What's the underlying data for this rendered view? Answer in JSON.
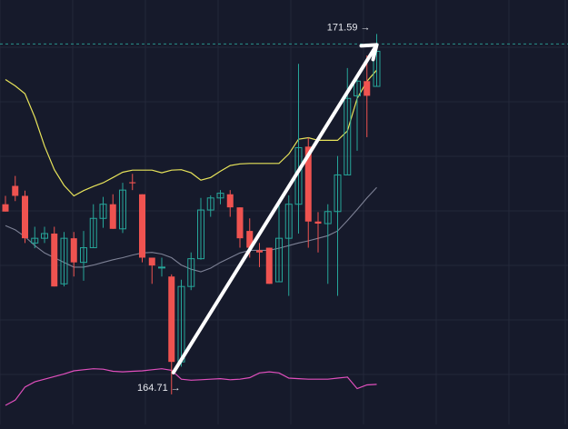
{
  "chart_data": {
    "type": "candlestick",
    "grid": true,
    "colors": {
      "background": "#161a2b",
      "grid": "#232839",
      "up": "#26a69a",
      "down": "#ef5350",
      "upper_band": "#e7e35a",
      "middle_band": "#7d8195",
      "lower_indicator": "#e04fbd",
      "dashed_level": "#2db3a5",
      "arrow": "#ffffff"
    },
    "annotations": {
      "high_label": "171.59 →",
      "low_label": "164.71 →",
      "high_value": 171.59,
      "low_value": 164.71
    },
    "candles": [
      {
        "i": 0,
        "open": 168.34,
        "close": 168.2,
        "high": 168.5,
        "low": 168.2
      },
      {
        "i": 1,
        "open": 168.69,
        "close": 168.5,
        "high": 168.88,
        "low": 168.4
      },
      {
        "i": 2,
        "open": 168.5,
        "close": 167.69,
        "high": 168.6,
        "low": 167.6
      },
      {
        "i": 3,
        "open": 167.6,
        "close": 167.69,
        "high": 167.91,
        "low": 167.5
      },
      {
        "i": 4,
        "open": 167.69,
        "close": 167.78,
        "high": 167.91,
        "low": 167.6
      },
      {
        "i": 5,
        "open": 167.78,
        "close": 166.77,
        "high": 167.91,
        "low": 166.77
      },
      {
        "i": 6,
        "open": 166.82,
        "close": 167.69,
        "high": 167.81,
        "low": 166.77
      },
      {
        "i": 7,
        "open": 167.69,
        "close": 167.23,
        "high": 167.81,
        "low": 166.96
      },
      {
        "i": 8,
        "open": 167.23,
        "close": 167.51,
        "high": 167.83,
        "low": 166.88
      },
      {
        "i": 9,
        "open": 167.51,
        "close": 168.07,
        "high": 168.34,
        "low": 167.51
      },
      {
        "i": 10,
        "open": 168.07,
        "close": 168.34,
        "high": 168.48,
        "low": 167.89
      },
      {
        "i": 11,
        "open": 168.34,
        "close": 167.87,
        "high": 168.53,
        "low": 167.87
      },
      {
        "i": 12,
        "open": 167.87,
        "close": 168.61,
        "high": 168.75,
        "low": 167.79
      },
      {
        "i": 13,
        "open": 168.76,
        "close": 168.74,
        "high": 168.92,
        "low": 168.61
      },
      {
        "i": 14,
        "open": 168.53,
        "close": 167.32,
        "high": 168.53,
        "low": 167.23
      },
      {
        "i": 15,
        "open": 167.32,
        "close": 167.17,
        "high": 167.32,
        "low": 166.82
      },
      {
        "i": 16,
        "open": 167.14,
        "close": 167.14,
        "high": 167.32,
        "low": 166.96
      },
      {
        "i": 17,
        "open": 166.96,
        "close": 165.33,
        "high": 167.0,
        "low": 164.71
      },
      {
        "i": 18,
        "open": 165.33,
        "close": 166.77,
        "high": 166.9,
        "low": 165.24
      },
      {
        "i": 19,
        "open": 166.77,
        "close": 167.3,
        "high": 167.42,
        "low": 166.7
      },
      {
        "i": 20,
        "open": 167.3,
        "close": 168.23,
        "high": 168.46,
        "low": 167.28
      },
      {
        "i": 21,
        "open": 168.23,
        "close": 168.46,
        "high": 168.51,
        "low": 168.1
      },
      {
        "i": 22,
        "open": 168.46,
        "close": 168.55,
        "high": 168.61,
        "low": 168.34
      },
      {
        "i": 23,
        "open": 168.53,
        "close": 168.28,
        "high": 168.61,
        "low": 168.1
      },
      {
        "i": 24,
        "open": 168.28,
        "close": 167.69,
        "high": 168.28,
        "low": 167.51
      },
      {
        "i": 25,
        "open": 167.83,
        "close": 167.51,
        "high": 168.07,
        "low": 167.32
      },
      {
        "i": 26,
        "open": 167.46,
        "close": 167.42,
        "high": 167.6,
        "low": 167.14
      },
      {
        "i": 27,
        "open": 167.51,
        "close": 166.82,
        "high": 167.51,
        "low": 166.82
      },
      {
        "i": 28,
        "open": 166.86,
        "close": 167.69,
        "high": 168.44,
        "low": 166.86
      },
      {
        "i": 29,
        "open": 167.69,
        "close": 168.34,
        "high": 168.51,
        "low": 166.59
      },
      {
        "i": 30,
        "open": 168.34,
        "close": 169.42,
        "high": 171.02,
        "low": 167.78
      },
      {
        "i": 31,
        "open": 169.44,
        "close": 168.01,
        "high": 169.61,
        "low": 167.51
      },
      {
        "i": 32,
        "open": 168.01,
        "close": 167.97,
        "high": 168.19,
        "low": 167.42
      },
      {
        "i": 33,
        "open": 167.97,
        "close": 168.2,
        "high": 168.34,
        "low": 166.82
      },
      {
        "i": 34,
        "open": 168.2,
        "close": 168.9,
        "high": 169.26,
        "low": 166.59
      },
      {
        "i": 35,
        "open": 168.9,
        "close": 170.36,
        "high": 170.94,
        "low": 168.9
      },
      {
        "i": 36,
        "open": 170.41,
        "close": 170.69,
        "high": 170.82,
        "low": 169.36
      },
      {
        "i": 37,
        "open": 170.69,
        "close": 170.41,
        "high": 171.18,
        "low": 169.62
      },
      {
        "i": 38,
        "open": 170.59,
        "close": 171.26,
        "high": 171.59,
        "low": 170.59
      }
    ],
    "upper_band": [
      {
        "i": 0,
        "v": 170.72
      },
      {
        "i": 1,
        "v": 170.6
      },
      {
        "i": 2,
        "v": 170.45
      },
      {
        "i": 3,
        "v": 170.0
      },
      {
        "i": 4,
        "v": 169.45
      },
      {
        "i": 5,
        "v": 169.0
      },
      {
        "i": 6,
        "v": 168.7
      },
      {
        "i": 7,
        "v": 168.5
      },
      {
        "i": 8,
        "v": 168.6
      },
      {
        "i": 9,
        "v": 168.68
      },
      {
        "i": 10,
        "v": 168.75
      },
      {
        "i": 11,
        "v": 168.85
      },
      {
        "i": 12,
        "v": 168.95
      },
      {
        "i": 13,
        "v": 168.99
      },
      {
        "i": 14,
        "v": 168.99
      },
      {
        "i": 15,
        "v": 168.99
      },
      {
        "i": 16,
        "v": 168.94
      },
      {
        "i": 17,
        "v": 168.99
      },
      {
        "i": 18,
        "v": 169.0
      },
      {
        "i": 19,
        "v": 168.94
      },
      {
        "i": 20,
        "v": 168.8
      },
      {
        "i": 21,
        "v": 168.85
      },
      {
        "i": 22,
        "v": 168.97
      },
      {
        "i": 23,
        "v": 169.08
      },
      {
        "i": 24,
        "v": 169.11
      },
      {
        "i": 25,
        "v": 169.12
      },
      {
        "i": 26,
        "v": 169.12
      },
      {
        "i": 27,
        "v": 169.12
      },
      {
        "i": 28,
        "v": 169.12
      },
      {
        "i": 29,
        "v": 169.3
      },
      {
        "i": 30,
        "v": 169.58
      },
      {
        "i": 31,
        "v": 169.61
      },
      {
        "i": 32,
        "v": 169.56
      },
      {
        "i": 33,
        "v": 169.56
      },
      {
        "i": 34,
        "v": 169.56
      },
      {
        "i": 35,
        "v": 169.74
      },
      {
        "i": 36,
        "v": 170.36
      },
      {
        "i": 37,
        "v": 170.69
      },
      {
        "i": 38,
        "v": 170.9
      }
    ],
    "middle_band": [
      {
        "i": 0,
        "v": 167.93
      },
      {
        "i": 1,
        "v": 167.85
      },
      {
        "i": 2,
        "v": 167.72
      },
      {
        "i": 3,
        "v": 167.55
      },
      {
        "i": 4,
        "v": 167.41
      },
      {
        "i": 5,
        "v": 167.32
      },
      {
        "i": 6,
        "v": 167.23
      },
      {
        "i": 7,
        "v": 167.14
      },
      {
        "i": 8,
        "v": 167.14
      },
      {
        "i": 9,
        "v": 167.18
      },
      {
        "i": 10,
        "v": 167.23
      },
      {
        "i": 11,
        "v": 167.28
      },
      {
        "i": 12,
        "v": 167.32
      },
      {
        "i": 13,
        "v": 167.37
      },
      {
        "i": 14,
        "v": 167.41
      },
      {
        "i": 15,
        "v": 167.42
      },
      {
        "i": 16,
        "v": 167.39
      },
      {
        "i": 17,
        "v": 167.32
      },
      {
        "i": 18,
        "v": 167.18
      },
      {
        "i": 19,
        "v": 167.1
      },
      {
        "i": 20,
        "v": 167.05
      },
      {
        "i": 21,
        "v": 167.12
      },
      {
        "i": 22,
        "v": 167.23
      },
      {
        "i": 23,
        "v": 167.32
      },
      {
        "i": 24,
        "v": 167.41
      },
      {
        "i": 25,
        "v": 167.46
      },
      {
        "i": 26,
        "v": 167.46
      },
      {
        "i": 27,
        "v": 167.46
      },
      {
        "i": 28,
        "v": 167.5
      },
      {
        "i": 29,
        "v": 167.55
      },
      {
        "i": 30,
        "v": 167.6
      },
      {
        "i": 31,
        "v": 167.64
      },
      {
        "i": 32,
        "v": 167.69
      },
      {
        "i": 33,
        "v": 167.74
      },
      {
        "i": 34,
        "v": 167.83
      },
      {
        "i": 35,
        "v": 168.03
      },
      {
        "i": 36,
        "v": 168.24
      },
      {
        "i": 37,
        "v": 168.46
      },
      {
        "i": 38,
        "v": 168.66
      }
    ],
    "lower_indicator": [
      {
        "i": 0,
        "v": 164.5
      },
      {
        "i": 1,
        "v": 164.6
      },
      {
        "i": 2,
        "v": 164.85
      },
      {
        "i": 3,
        "v": 164.95
      },
      {
        "i": 4,
        "v": 165.0
      },
      {
        "i": 5,
        "v": 165.05
      },
      {
        "i": 6,
        "v": 165.1
      },
      {
        "i": 7,
        "v": 165.16
      },
      {
        "i": 8,
        "v": 165.18
      },
      {
        "i": 9,
        "v": 165.2
      },
      {
        "i": 10,
        "v": 165.19
      },
      {
        "i": 11,
        "v": 165.15
      },
      {
        "i": 12,
        "v": 165.14
      },
      {
        "i": 13,
        "v": 165.15
      },
      {
        "i": 14,
        "v": 165.16
      },
      {
        "i": 15,
        "v": 165.18
      },
      {
        "i": 16,
        "v": 165.2
      },
      {
        "i": 17,
        "v": 165.17
      },
      {
        "i": 18,
        "v": 165.0
      },
      {
        "i": 19,
        "v": 164.98
      },
      {
        "i": 20,
        "v": 164.99
      },
      {
        "i": 21,
        "v": 165.0
      },
      {
        "i": 22,
        "v": 165.01
      },
      {
        "i": 23,
        "v": 164.99
      },
      {
        "i": 24,
        "v": 165.0
      },
      {
        "i": 25,
        "v": 165.03
      },
      {
        "i": 26,
        "v": 165.12
      },
      {
        "i": 27,
        "v": 165.14
      },
      {
        "i": 28,
        "v": 165.12
      },
      {
        "i": 29,
        "v": 165.02
      },
      {
        "i": 30,
        "v": 165.01
      },
      {
        "i": 31,
        "v": 165.0
      },
      {
        "i": 32,
        "v": 165.0
      },
      {
        "i": 33,
        "v": 165.0
      },
      {
        "i": 34,
        "v": 165.02
      },
      {
        "i": 35,
        "v": 165.04
      },
      {
        "i": 36,
        "v": 164.82
      },
      {
        "i": 37,
        "v": 164.89
      },
      {
        "i": 38,
        "v": 164.9
      }
    ],
    "trend_arrow": {
      "from": {
        "i": 17,
        "v": 164.71
      },
      "to": {
        "i": 38,
        "v": 171.59
      }
    },
    "dashed_level": 171.59
  }
}
